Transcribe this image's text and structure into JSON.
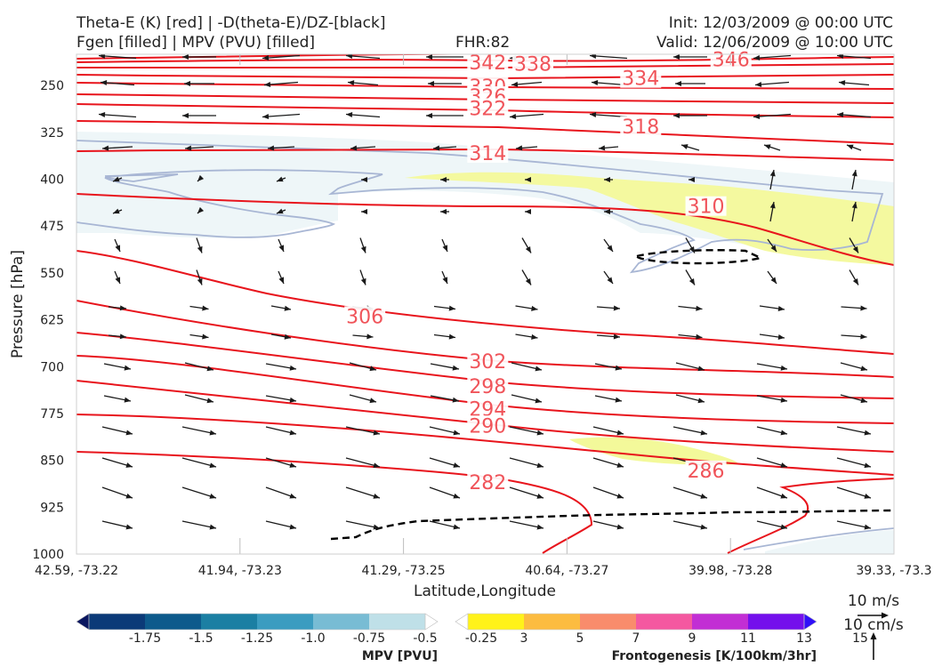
{
  "header": {
    "line1_left": "Theta-E (K) [red] | -D(theta-E)/DZ-[black]",
    "line2_left": "Fgen [filled] | MPV (PVU) [filled]",
    "fhr": "FHR:82",
    "init": "Init: 12/03/2009 @ 00:00 UTC",
    "valid": "Valid: 12/06/2009 @ 10:00 UTC"
  },
  "colors": {
    "theta_e": "#e8141c",
    "theta_e_label": "#f0545a",
    "dz_contour": "#000000",
    "mpv_contour": "#a8b6d4",
    "mpv_fill": "#eef6f8",
    "fgen_fill": "#f3f99a",
    "wind": "#1a1a1a"
  },
  "chart_data": {
    "type": "cross-section",
    "xlabel": "Latitude,Longitude",
    "ylabel": "Pressure [hPa]",
    "ylim": [
      1000,
      200
    ],
    "y_scale": "linear, inverted",
    "x_ticks": [
      "42.59, -73.22",
      "41.94, -73.23",
      "41.29, -73.25",
      "40.64, -73.27",
      "39.98, -73.28",
      "39.33, -73.3"
    ],
    "y_ticks": [
      250,
      325,
      400,
      475,
      550,
      625,
      700,
      775,
      850,
      925,
      1000
    ],
    "theta_e_labels": [
      {
        "value": "346",
        "lat": 39.98,
        "p": 208
      },
      {
        "value": "342",
        "lat": 40.95,
        "p": 213
      },
      {
        "value": "338",
        "lat": 40.77,
        "p": 215
      },
      {
        "value": "334",
        "lat": 40.34,
        "p": 238
      },
      {
        "value": "330",
        "lat": 40.95,
        "p": 251
      },
      {
        "value": "326",
        "lat": 40.95,
        "p": 267
      },
      {
        "value": "322",
        "lat": 40.95,
        "p": 286
      },
      {
        "value": "318",
        "lat": 40.34,
        "p": 315
      },
      {
        "value": "314",
        "lat": 40.95,
        "p": 358
      },
      {
        "value": "310",
        "lat": 40.08,
        "p": 443
      },
      {
        "value": "306",
        "lat": 41.44,
        "p": 619
      },
      {
        "value": "302",
        "lat": 40.95,
        "p": 691
      },
      {
        "value": "298",
        "lat": 40.95,
        "p": 731
      },
      {
        "value": "294",
        "lat": 40.95,
        "p": 767
      },
      {
        "value": "290",
        "lat": 40.95,
        "p": 794
      },
      {
        "value": "286",
        "lat": 40.08,
        "p": 866
      },
      {
        "value": "282",
        "lat": 40.95,
        "p": 885
      }
    ],
    "colorbar_mpv": {
      "label": "MPV [PVU]",
      "ticks": [
        "-1.75",
        "-1.5",
        "-1.25",
        "-1.0",
        "-0.75",
        "-0.5",
        "-0.25"
      ],
      "colors": [
        "#0a1760",
        "#0b3a78",
        "#0d5a8c",
        "#1b7fa3",
        "#3b9cc0",
        "#78bcd4",
        "#bfe0e8",
        "#ffffff"
      ]
    },
    "colorbar_fgen": {
      "label": "Frontogenesis [K/100km/3hr]",
      "ticks": [
        "3",
        "5",
        "7",
        "9",
        "11",
        "13",
        "15"
      ],
      "colors": [
        "#ffffff",
        "#fff21a",
        "#fcbc40",
        "#f98c6c",
        "#f458a0",
        "#c22ed4",
        "#7410ec",
        "#3010f8"
      ]
    },
    "wind_legend": {
      "horizontal": "10 m/s",
      "vertical": "10 cm/s"
    }
  }
}
